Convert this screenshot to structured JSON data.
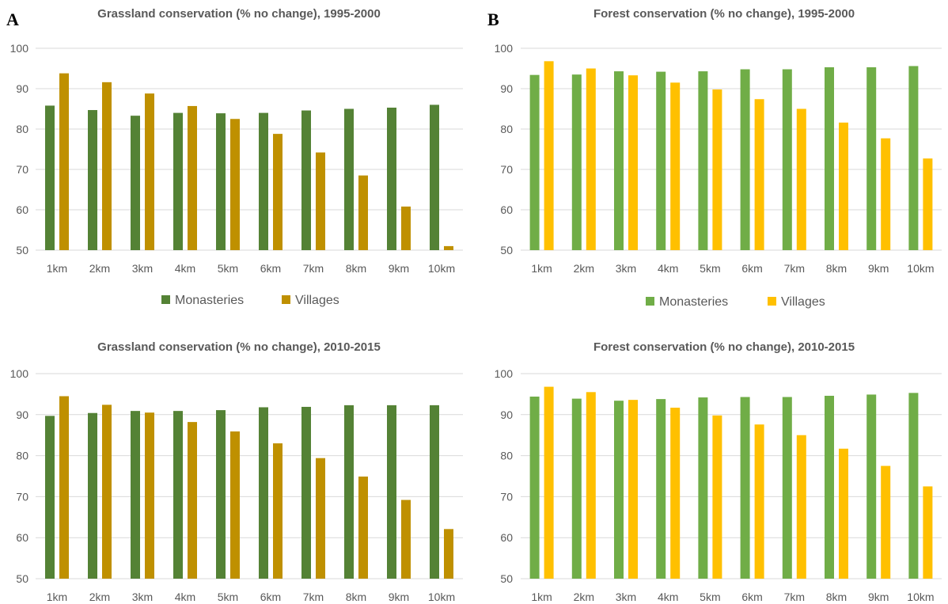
{
  "panel_labels": {
    "a": "A",
    "b": "B"
  },
  "colors": {
    "grass_monasteries": "#548235",
    "grass_villages": "#BF9000",
    "forest_monasteries": "#70AD47",
    "forest_villages": "#FFC000",
    "grid": "#D9D9D9",
    "text": "#595959"
  },
  "legends": {
    "grassland": [
      "Monasteries",
      "Villages"
    ],
    "forest": [
      "Monasteries",
      "Villages"
    ]
  },
  "chart_data": [
    {
      "type": "bar",
      "title": "Grassland conservation (% no change), 1995-2000",
      "categories": [
        "1km",
        "2km",
        "3km",
        "4km",
        "5km",
        "6km",
        "7km",
        "8km",
        "9km",
        "10km"
      ],
      "ylim": [
        50,
        100
      ],
      "yticks": [
        50,
        60,
        70,
        80,
        90,
        100
      ],
      "series": [
        {
          "name": "Monasteries",
          "values": [
            85.8,
            84.7,
            83.3,
            84.0,
            83.9,
            84.0,
            84.6,
            85.0,
            85.3,
            86.0
          ]
        },
        {
          "name": "Villages",
          "values": [
            93.8,
            91.6,
            88.8,
            85.7,
            82.5,
            78.8,
            74.2,
            68.5,
            60.8,
            51.0
          ]
        }
      ]
    },
    {
      "type": "bar",
      "title": "Forest conservation (% no change), 1995-2000",
      "categories": [
        "1km",
        "2km",
        "3km",
        "4km",
        "5km",
        "6km",
        "7km",
        "8km",
        "9km",
        "10km"
      ],
      "ylim": [
        50,
        100
      ],
      "yticks": [
        50,
        60,
        70,
        80,
        90,
        100
      ],
      "series": [
        {
          "name": "Monasteries",
          "values": [
            93.4,
            93.5,
            94.3,
            94.2,
            94.3,
            94.8,
            94.8,
            95.3,
            95.3,
            95.6
          ]
        },
        {
          "name": "Villages",
          "values": [
            96.8,
            95.0,
            93.3,
            91.5,
            89.8,
            87.4,
            85.0,
            81.6,
            77.7,
            72.7
          ]
        }
      ]
    },
    {
      "type": "bar",
      "title": "Grassland conservation (% no change), 2010-2015",
      "categories": [
        "1km",
        "2km",
        "3km",
        "4km",
        "5km",
        "6km",
        "7km",
        "8km",
        "9km",
        "10km"
      ],
      "ylim": [
        50,
        100
      ],
      "yticks": [
        50,
        60,
        70,
        80,
        90,
        100
      ],
      "series": [
        {
          "name": "Monasteries",
          "values": [
            89.7,
            90.4,
            90.9,
            90.9,
            91.1,
            91.8,
            91.9,
            92.3,
            92.3,
            92.3
          ]
        },
        {
          "name": "Villages",
          "values": [
            94.5,
            92.4,
            90.5,
            88.2,
            85.9,
            83.0,
            79.4,
            74.9,
            69.2,
            62.1
          ]
        }
      ]
    },
    {
      "type": "bar",
      "title": "Forest conservation (% no change), 2010-2015",
      "categories": [
        "1km",
        "2km",
        "3km",
        "4km",
        "5km",
        "6km",
        "7km",
        "8km",
        "9km",
        "10km"
      ],
      "ylim": [
        50,
        100
      ],
      "yticks": [
        50,
        60,
        70,
        80,
        90,
        100
      ],
      "series": [
        {
          "name": "Monasteries",
          "values": [
            94.4,
            93.9,
            93.4,
            93.8,
            94.2,
            94.3,
            94.3,
            94.6,
            94.9,
            95.3
          ]
        },
        {
          "name": "Villages",
          "values": [
            96.8,
            95.5,
            93.6,
            91.7,
            89.8,
            87.6,
            85.0,
            81.7,
            77.5,
            72.5
          ]
        }
      ]
    }
  ]
}
